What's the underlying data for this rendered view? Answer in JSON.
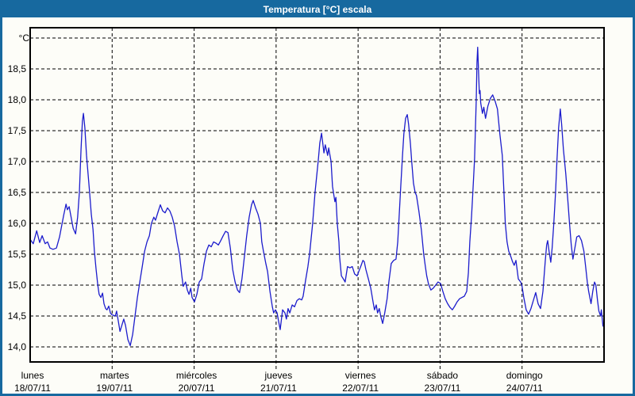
{
  "window": {
    "title": "Temperatura [°C] escala"
  },
  "colors": {
    "titlebar": "#17699f",
    "border": "#17699f",
    "background": "#fdfdf8",
    "line": "#1c1ccc",
    "grid": "#000000",
    "text": "#000000",
    "title_text": "#ffffff"
  },
  "chart_data": {
    "type": "line",
    "title": "Temperatura [°C] escala",
    "unit_label": "°C",
    "grid": "dashed",
    "legend": "none",
    "x_axis": {
      "unit": "hours",
      "range_hours": [
        0,
        168
      ],
      "day_width_hours": 24,
      "days": [
        {
          "name": "lunes",
          "date": "18/07/11"
        },
        {
          "name": "martes",
          "date": "19/07/11"
        },
        {
          "name": "miércoles",
          "date": "20/07/11"
        },
        {
          "name": "jueves",
          "date": "21/07/11"
        },
        {
          "name": "viernes",
          "date": "22/07/11"
        },
        {
          "name": "sábado",
          "date": "23/07/11"
        },
        {
          "name": "domingo",
          "date": "24/07/11"
        }
      ]
    },
    "y_axis": {
      "ylim": [
        13.77,
        19.17
      ],
      "gridline_values": [
        14.0,
        14.5,
        15.0,
        15.5,
        16.0,
        16.5,
        17.0,
        17.5,
        18.0,
        18.5,
        19.0
      ],
      "ticks": [
        {
          "value": 18.5,
          "label": "18,5"
        },
        {
          "value": 18.0,
          "label": "18,0"
        },
        {
          "value": 17.5,
          "label": "17,5"
        },
        {
          "value": 17.0,
          "label": "17,0"
        },
        {
          "value": 16.5,
          "label": "16,5"
        },
        {
          "value": 16.0,
          "label": "16,0"
        },
        {
          "value": 15.5,
          "label": "15,5"
        },
        {
          "value": 15.0,
          "label": "15,0"
        },
        {
          "value": 14.5,
          "label": "14,5"
        },
        {
          "value": 14.0,
          "label": "14,0"
        }
      ]
    },
    "series": [
      {
        "name": "Temperatura",
        "color": "#1c1ccc",
        "points": [
          [
            0,
            15.74
          ],
          [
            0.9,
            15.67
          ],
          [
            1.9,
            15.88
          ],
          [
            2.8,
            15.69
          ],
          [
            3.5,
            15.8
          ],
          [
            4.4,
            15.67
          ],
          [
            5.1,
            15.7
          ],
          [
            5.8,
            15.6
          ],
          [
            6.7,
            15.58
          ],
          [
            7.7,
            15.6
          ],
          [
            8.6,
            15.78
          ],
          [
            9.8,
            16.13
          ],
          [
            10.5,
            16.31
          ],
          [
            10.9,
            16.22
          ],
          [
            11.4,
            16.27
          ],
          [
            12.6,
            15.92
          ],
          [
            13.3,
            15.83
          ],
          [
            13.9,
            16.1
          ],
          [
            14.4,
            16.5
          ],
          [
            14.9,
            17.2
          ],
          [
            15.3,
            17.65
          ],
          [
            15.6,
            17.78
          ],
          [
            16.0,
            17.55
          ],
          [
            16.5,
            17.1
          ],
          [
            17.4,
            16.5
          ],
          [
            17.9,
            16.15
          ],
          [
            18.4,
            15.9
          ],
          [
            18.8,
            15.55
          ],
          [
            19.3,
            15.25
          ],
          [
            19.8,
            15.0
          ],
          [
            20.2,
            14.85
          ],
          [
            20.7,
            14.8
          ],
          [
            21.2,
            14.87
          ],
          [
            21.6,
            14.7
          ],
          [
            22.1,
            14.62
          ],
          [
            22.5,
            14.6
          ],
          [
            23.0,
            14.66
          ],
          [
            23.5,
            14.55
          ],
          [
            23.9,
            14.52
          ],
          [
            24.9,
            14.5
          ],
          [
            25.3,
            14.58
          ],
          [
            25.8,
            14.42
          ],
          [
            26.3,
            14.25
          ],
          [
            27.0,
            14.38
          ],
          [
            27.4,
            14.45
          ],
          [
            27.9,
            14.35
          ],
          [
            28.6,
            14.12
          ],
          [
            29.3,
            14.02
          ],
          [
            30.0,
            14.2
          ],
          [
            30.7,
            14.5
          ],
          [
            31.4,
            14.8
          ],
          [
            32.1,
            15.05
          ],
          [
            32.8,
            15.3
          ],
          [
            33.5,
            15.55
          ],
          [
            34.2,
            15.7
          ],
          [
            34.9,
            15.8
          ],
          [
            35.5,
            16.0
          ],
          [
            36.2,
            16.1
          ],
          [
            36.7,
            16.05
          ],
          [
            37.4,
            16.18
          ],
          [
            38.1,
            16.3
          ],
          [
            38.8,
            16.2
          ],
          [
            39.5,
            16.17
          ],
          [
            40.2,
            16.25
          ],
          [
            40.9,
            16.2
          ],
          [
            41.6,
            16.1
          ],
          [
            42.3,
            15.95
          ],
          [
            43.0,
            15.7
          ],
          [
            43.7,
            15.5
          ],
          [
            44.4,
            15.15
          ],
          [
            44.8,
            14.98
          ],
          [
            45.5,
            15.05
          ],
          [
            46.0,
            14.92
          ],
          [
            46.5,
            14.85
          ],
          [
            47.0,
            14.95
          ],
          [
            47.4,
            14.8
          ],
          [
            48.1,
            14.73
          ],
          [
            48.8,
            14.85
          ],
          [
            49.5,
            15.05
          ],
          [
            50.2,
            15.1
          ],
          [
            50.9,
            15.35
          ],
          [
            51.6,
            15.55
          ],
          [
            52.3,
            15.65
          ],
          [
            53.0,
            15.62
          ],
          [
            53.7,
            15.7
          ],
          [
            54.4,
            15.68
          ],
          [
            55.1,
            15.65
          ],
          [
            55.8,
            15.72
          ],
          [
            56.5,
            15.8
          ],
          [
            57.2,
            15.87
          ],
          [
            57.9,
            15.85
          ],
          [
            58.6,
            15.6
          ],
          [
            59.3,
            15.25
          ],
          [
            60.0,
            15.05
          ],
          [
            60.7,
            14.92
          ],
          [
            61.3,
            14.88
          ],
          [
            62.0,
            15.1
          ],
          [
            62.7,
            15.45
          ],
          [
            63.4,
            15.8
          ],
          [
            64.1,
            16.1
          ],
          [
            64.8,
            16.3
          ],
          [
            65.3,
            16.37
          ],
          [
            66.0,
            16.25
          ],
          [
            66.7,
            16.15
          ],
          [
            67.4,
            16.0
          ],
          [
            67.8,
            15.7
          ],
          [
            68.3,
            15.55
          ],
          [
            69.0,
            15.35
          ],
          [
            69.5,
            15.22
          ],
          [
            70.2,
            14.9
          ],
          [
            70.9,
            14.65
          ],
          [
            71.3,
            14.55
          ],
          [
            71.8,
            14.6
          ],
          [
            72.3,
            14.55
          ],
          [
            72.7,
            14.42
          ],
          [
            73.2,
            14.28
          ],
          [
            73.9,
            14.6
          ],
          [
            74.6,
            14.55
          ],
          [
            75.0,
            14.45
          ],
          [
            75.5,
            14.62
          ],
          [
            76.0,
            14.55
          ],
          [
            76.7,
            14.68
          ],
          [
            77.4,
            14.65
          ],
          [
            78.1,
            14.75
          ],
          [
            78.8,
            14.78
          ],
          [
            79.5,
            14.76
          ],
          [
            79.9,
            14.82
          ],
          [
            80.6,
            15.07
          ],
          [
            81.3,
            15.3
          ],
          [
            81.8,
            15.5
          ],
          [
            82.7,
            16.0
          ],
          [
            83.4,
            16.5
          ],
          [
            84.4,
            17.05
          ],
          [
            84.8,
            17.3
          ],
          [
            85.3,
            17.46
          ],
          [
            86.0,
            17.14
          ],
          [
            86.4,
            17.27
          ],
          [
            87.1,
            17.1
          ],
          [
            87.4,
            17.22
          ],
          [
            88.1,
            17.0
          ],
          [
            88.5,
            16.6
          ],
          [
            89.2,
            16.35
          ],
          [
            89.5,
            16.42
          ],
          [
            89.9,
            16.0
          ],
          [
            90.4,
            15.7
          ],
          [
            90.6,
            15.45
          ],
          [
            91.1,
            15.15
          ],
          [
            91.8,
            15.09
          ],
          [
            92.2,
            15.05
          ],
          [
            92.9,
            15.3
          ],
          [
            93.6,
            15.28
          ],
          [
            94.3,
            15.3
          ],
          [
            95.0,
            15.18
          ],
          [
            95.7,
            15.15
          ],
          [
            96.2,
            15.22
          ],
          [
            96.9,
            15.32
          ],
          [
            97.4,
            15.4
          ],
          [
            97.8,
            15.38
          ],
          [
            98.3,
            15.25
          ],
          [
            99.0,
            15.1
          ],
          [
            99.7,
            14.95
          ],
          [
            100.4,
            14.72
          ],
          [
            100.8,
            14.6
          ],
          [
            101.3,
            14.68
          ],
          [
            101.7,
            14.55
          ],
          [
            102.2,
            14.62
          ],
          [
            102.7,
            14.48
          ],
          [
            103.2,
            14.38
          ],
          [
            103.8,
            14.55
          ],
          [
            104.5,
            14.78
          ],
          [
            105.0,
            15.05
          ],
          [
            105.7,
            15.35
          ],
          [
            106.4,
            15.4
          ],
          [
            107.1,
            15.42
          ],
          [
            107.6,
            15.7
          ],
          [
            108.0,
            16.1
          ],
          [
            108.5,
            16.6
          ],
          [
            109.0,
            17.1
          ],
          [
            109.4,
            17.45
          ],
          [
            109.9,
            17.7
          ],
          [
            110.4,
            17.76
          ],
          [
            110.8,
            17.6
          ],
          [
            111.3,
            17.3
          ],
          [
            111.7,
            17.0
          ],
          [
            112.2,
            16.65
          ],
          [
            112.7,
            16.5
          ],
          [
            113.1,
            16.45
          ],
          [
            113.8,
            16.2
          ],
          [
            114.5,
            15.9
          ],
          [
            115.2,
            15.5
          ],
          [
            115.7,
            15.3
          ],
          [
            116.1,
            15.15
          ],
          [
            116.6,
            15.02
          ],
          [
            117.3,
            14.92
          ],
          [
            118.0,
            14.95
          ],
          [
            118.7,
            15.0
          ],
          [
            119.4,
            15.05
          ],
          [
            120.1,
            15.03
          ],
          [
            120.8,
            14.9
          ],
          [
            121.5,
            14.78
          ],
          [
            122.2,
            14.7
          ],
          [
            122.9,
            14.64
          ],
          [
            123.6,
            14.6
          ],
          [
            124.3,
            14.66
          ],
          [
            125.0,
            14.73
          ],
          [
            125.7,
            14.78
          ],
          [
            126.4,
            14.8
          ],
          [
            127.1,
            14.82
          ],
          [
            127.8,
            14.9
          ],
          [
            128.3,
            15.2
          ],
          [
            128.7,
            15.7
          ],
          [
            129.2,
            16.1
          ],
          [
            129.6,
            16.5
          ],
          [
            130.1,
            17.05
          ],
          [
            130.6,
            18.0
          ],
          [
            130.8,
            18.6
          ],
          [
            131.0,
            18.85
          ],
          [
            131.5,
            18.1
          ],
          [
            131.7,
            18.15
          ],
          [
            131.9,
            17.95
          ],
          [
            132.4,
            17.78
          ],
          [
            132.8,
            17.88
          ],
          [
            133.3,
            17.7
          ],
          [
            134.0,
            17.9
          ],
          [
            134.7,
            18.02
          ],
          [
            135.4,
            18.08
          ],
          [
            136.1,
            17.98
          ],
          [
            136.8,
            17.85
          ],
          [
            137.5,
            17.45
          ],
          [
            138.2,
            17.1
          ],
          [
            138.7,
            16.5
          ],
          [
            139.1,
            16.0
          ],
          [
            139.6,
            15.7
          ],
          [
            140.1,
            15.55
          ],
          [
            140.8,
            15.45
          ],
          [
            141.2,
            15.38
          ],
          [
            141.7,
            15.32
          ],
          [
            142.2,
            15.4
          ],
          [
            142.9,
            15.1
          ],
          [
            143.6,
            15.05
          ],
          [
            144.0,
            14.98
          ],
          [
            144.5,
            14.8
          ],
          [
            145.2,
            14.6
          ],
          [
            145.9,
            14.53
          ],
          [
            146.6,
            14.62
          ],
          [
            147.3,
            14.75
          ],
          [
            148.0,
            14.88
          ],
          [
            148.7,
            14.7
          ],
          [
            149.4,
            14.62
          ],
          [
            150.1,
            14.9
          ],
          [
            150.8,
            15.4
          ],
          [
            151.2,
            15.65
          ],
          [
            151.5,
            15.72
          ],
          [
            151.9,
            15.55
          ],
          [
            152.4,
            15.37
          ],
          [
            152.8,
            15.6
          ],
          [
            153.3,
            16.0
          ],
          [
            153.8,
            16.5
          ],
          [
            154.2,
            17.0
          ],
          [
            154.7,
            17.55
          ],
          [
            155.2,
            17.85
          ],
          [
            155.6,
            17.6
          ],
          [
            156.1,
            17.2
          ],
          [
            156.8,
            16.8
          ],
          [
            157.5,
            16.3
          ],
          [
            157.9,
            16.0
          ],
          [
            158.4,
            15.65
          ],
          [
            158.9,
            15.42
          ],
          [
            159.6,
            15.65
          ],
          [
            160.0,
            15.78
          ],
          [
            160.7,
            15.8
          ],
          [
            161.4,
            15.72
          ],
          [
            162.1,
            15.55
          ],
          [
            162.6,
            15.3
          ],
          [
            163.1,
            15.05
          ],
          [
            163.5,
            14.9
          ],
          [
            164.2,
            14.7
          ],
          [
            164.7,
            14.9
          ],
          [
            165.2,
            15.05
          ],
          [
            165.6,
            15.0
          ],
          [
            166.1,
            14.75
          ],
          [
            166.5,
            14.58
          ],
          [
            167.0,
            14.5
          ],
          [
            167.2,
            14.6
          ],
          [
            167.7,
            14.33
          ]
        ]
      }
    ]
  }
}
